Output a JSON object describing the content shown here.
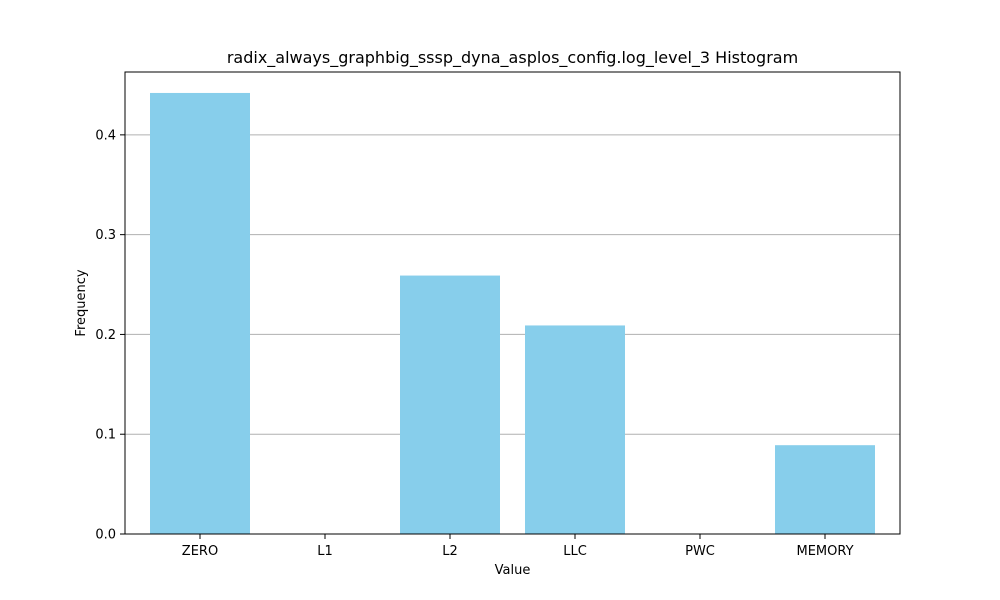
{
  "chart_data": {
    "type": "bar",
    "title": "radix_always_graphbig_sssp_dyna_asplos_config.log_level_3 Histogram",
    "xlabel": "Value",
    "ylabel": "Frequency",
    "categories": [
      "ZERO",
      "L1",
      "L2",
      "LLC",
      "PWC",
      "MEMORY"
    ],
    "values": [
      0.442,
      0.0,
      0.259,
      0.209,
      0.0,
      0.089
    ],
    "ylim": [
      0,
      0.463
    ],
    "yticks": [
      0.0,
      0.1,
      0.2,
      0.3,
      0.4
    ],
    "ytick_labels": [
      "0.0",
      "0.1",
      "0.2",
      "0.3",
      "0.4"
    ],
    "grid": "y",
    "legend": "none",
    "bar_color": "#87CEEB",
    "grid_color": "#b0b0b0"
  }
}
